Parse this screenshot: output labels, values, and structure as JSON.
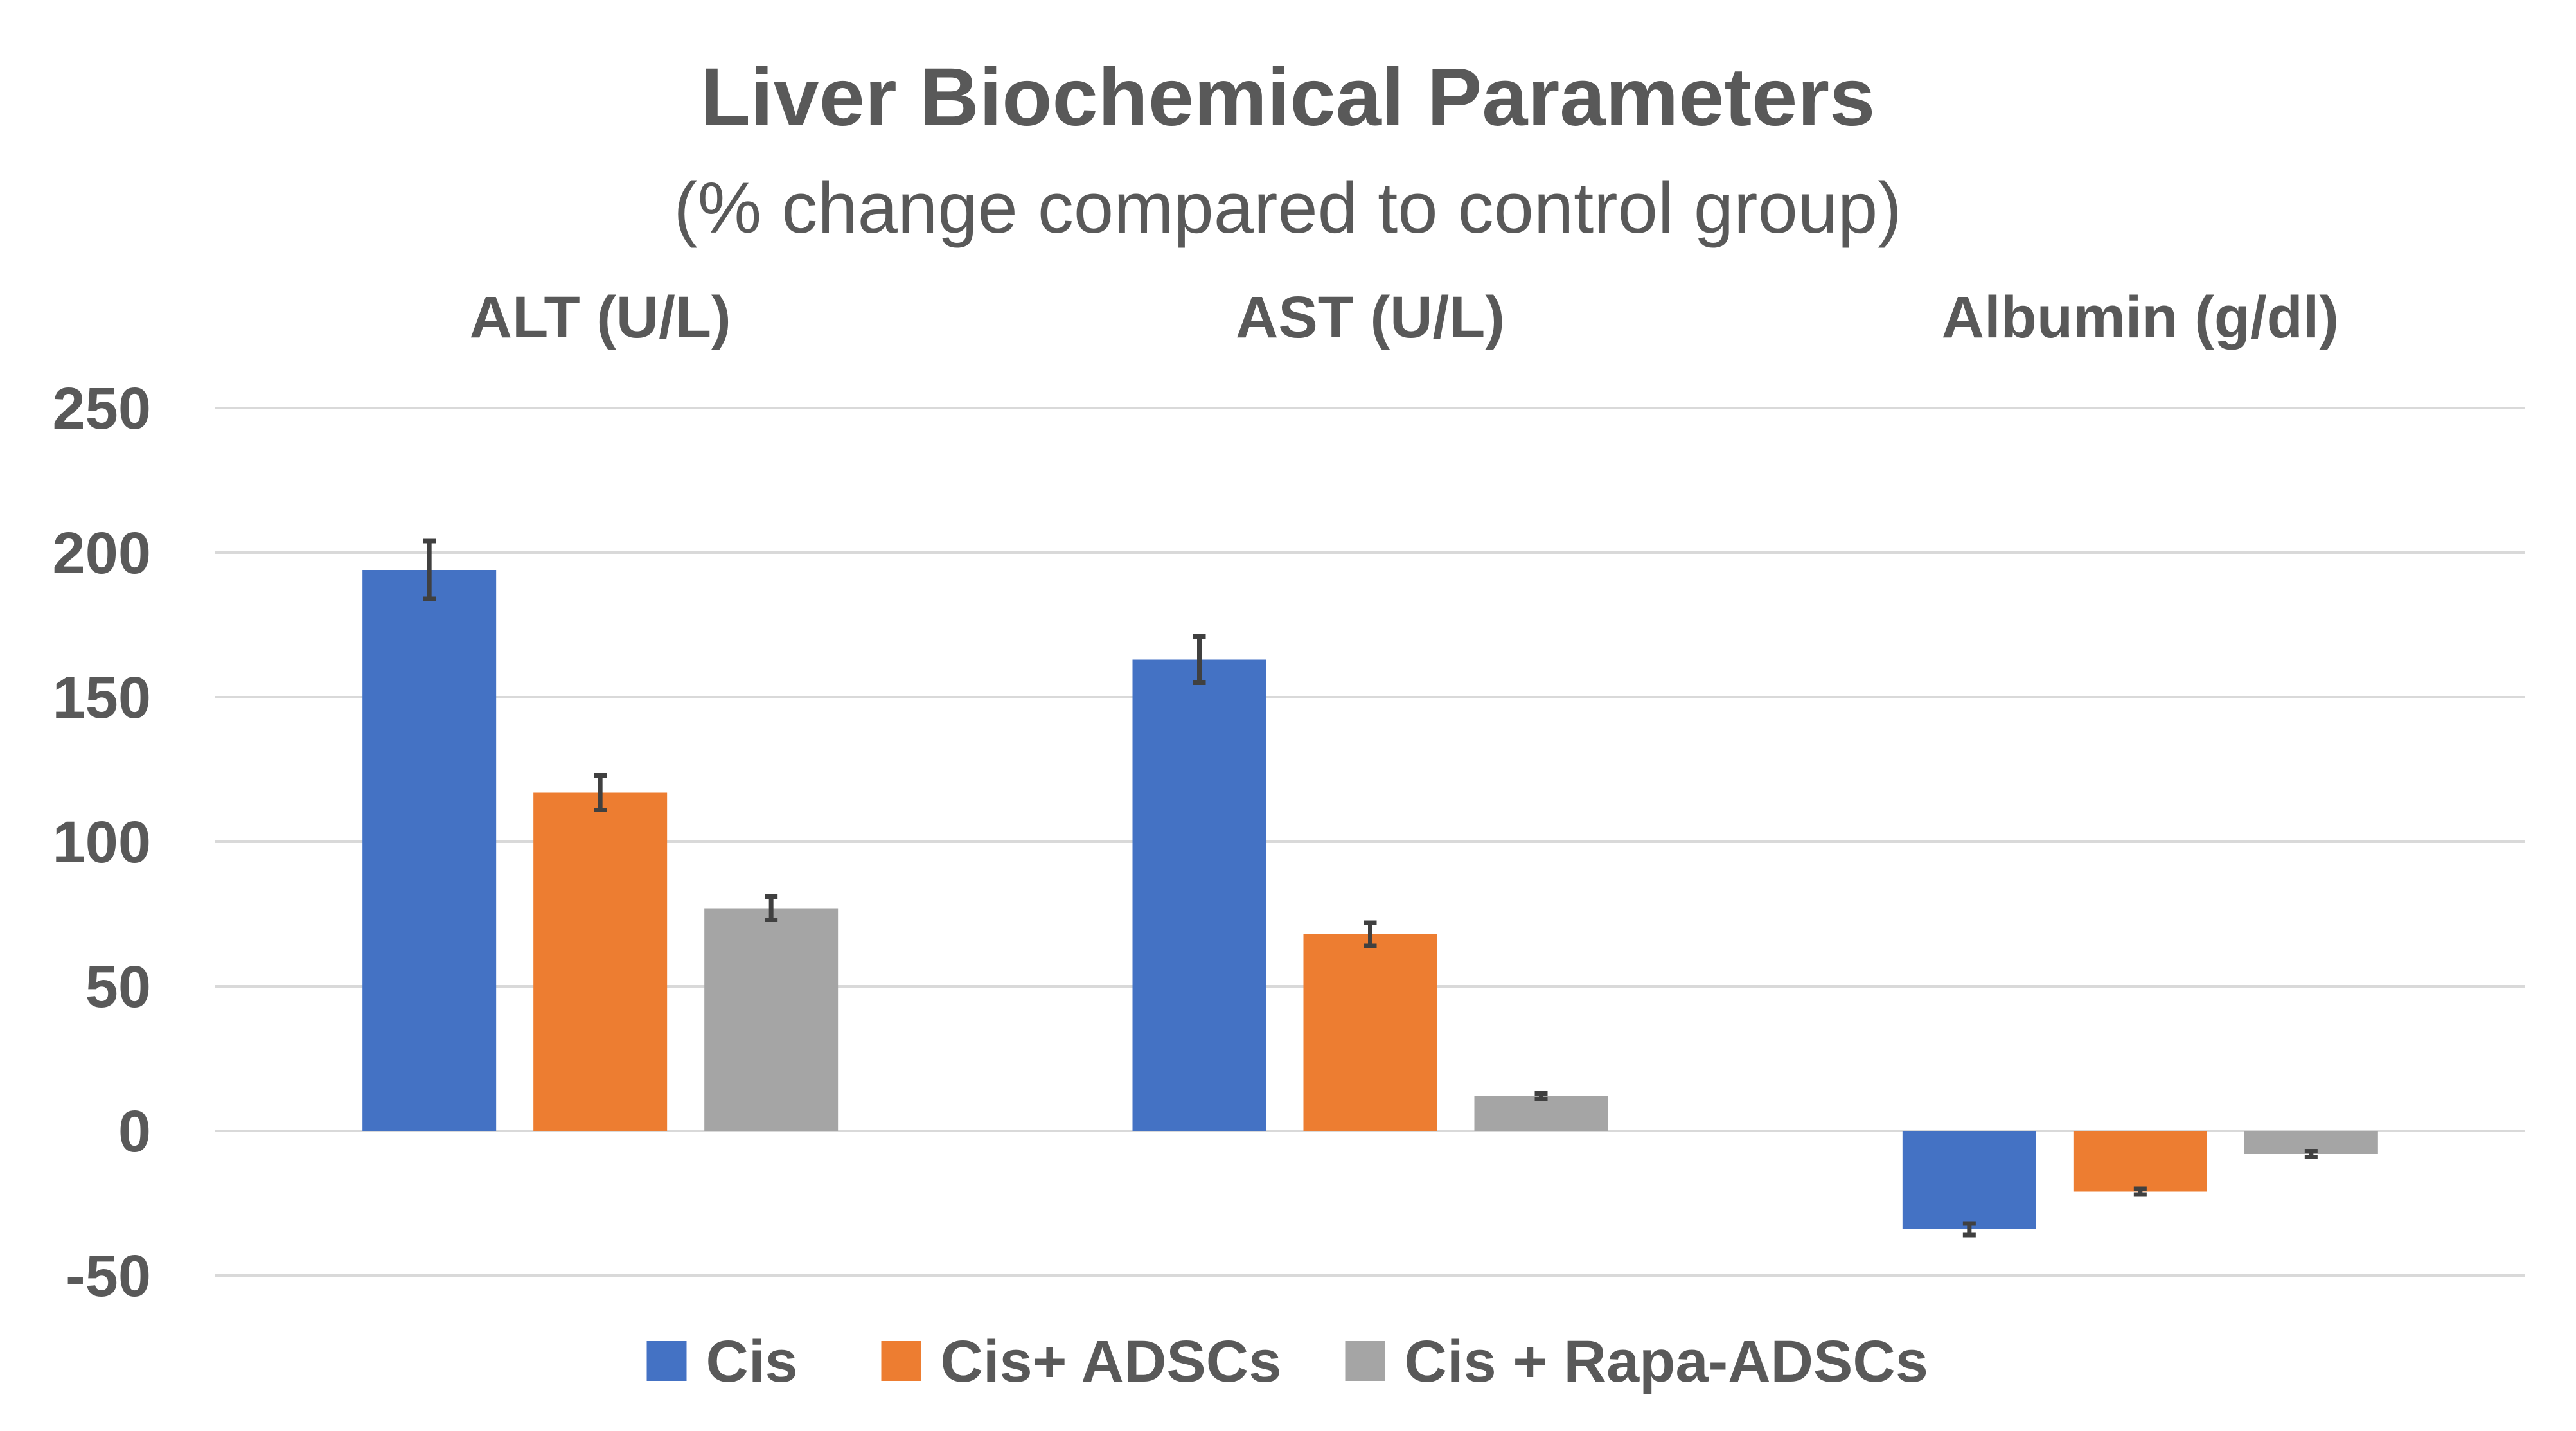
{
  "chart_data": {
    "type": "bar",
    "title": "Liver Biochemical Parameters",
    "subtitle": "(% change compared to control group)",
    "xlabel": "",
    "ylabel": "",
    "categories": [
      "ALT (U/L)",
      "AST (U/L)",
      "Albumin (g/dl)"
    ],
    "category_labels_position": "top",
    "series": [
      {
        "name": "Cis",
        "color": "#4472c4",
        "values": [
          194,
          163,
          -34
        ],
        "errors": [
          10,
          8,
          2
        ]
      },
      {
        "name": "Cis+ ADSCs",
        "color": "#ed7d31",
        "values": [
          117,
          68,
          -21
        ],
        "errors": [
          6,
          4,
          1
        ]
      },
      {
        "name": "Cis + Rapa-ADSCs",
        "color": "#a5a5a5",
        "values": [
          77,
          12,
          -8
        ],
        "errors": [
          4,
          1,
          1
        ]
      }
    ],
    "ylim": [
      -50,
      250
    ],
    "yticks": [
      250,
      200,
      150,
      100,
      50,
      0,
      -50
    ],
    "grid": true,
    "legend_position": "bottom"
  }
}
